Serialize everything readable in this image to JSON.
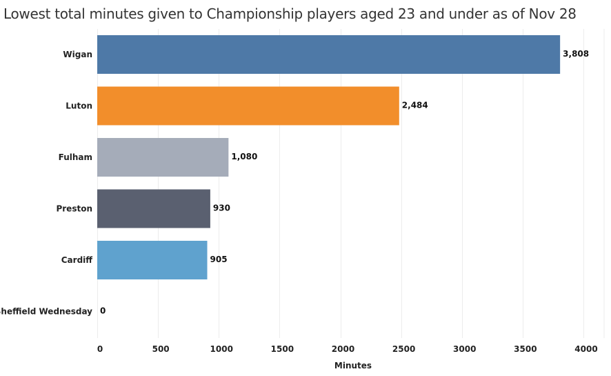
{
  "chart_data": {
    "type": "bar",
    "orientation": "horizontal",
    "title": "Lowest total minutes given to Championship players aged 23 and under as of Nov 28",
    "xlabel": "Minutes",
    "ylabel": "",
    "xlim": [
      0,
      4000
    ],
    "xticks": [
      0,
      500,
      1000,
      1500,
      2000,
      2500,
      3000,
      3500,
      4000
    ],
    "grid": true,
    "categories": [
      "Wigan",
      "Luton",
      "Fulham",
      "Preston",
      "Cardiff",
      "Sheffield Wednesday"
    ],
    "values": [
      3808,
      2484,
      1080,
      930,
      905,
      0
    ],
    "value_labels": [
      "3,808",
      "2,484",
      "1,080",
      "930",
      "905",
      "0"
    ],
    "colors": [
      "#4e79a7",
      "#f28e2b",
      "#a5acb9",
      "#5a6070",
      "#5fa2ce",
      "#cccccc"
    ]
  }
}
